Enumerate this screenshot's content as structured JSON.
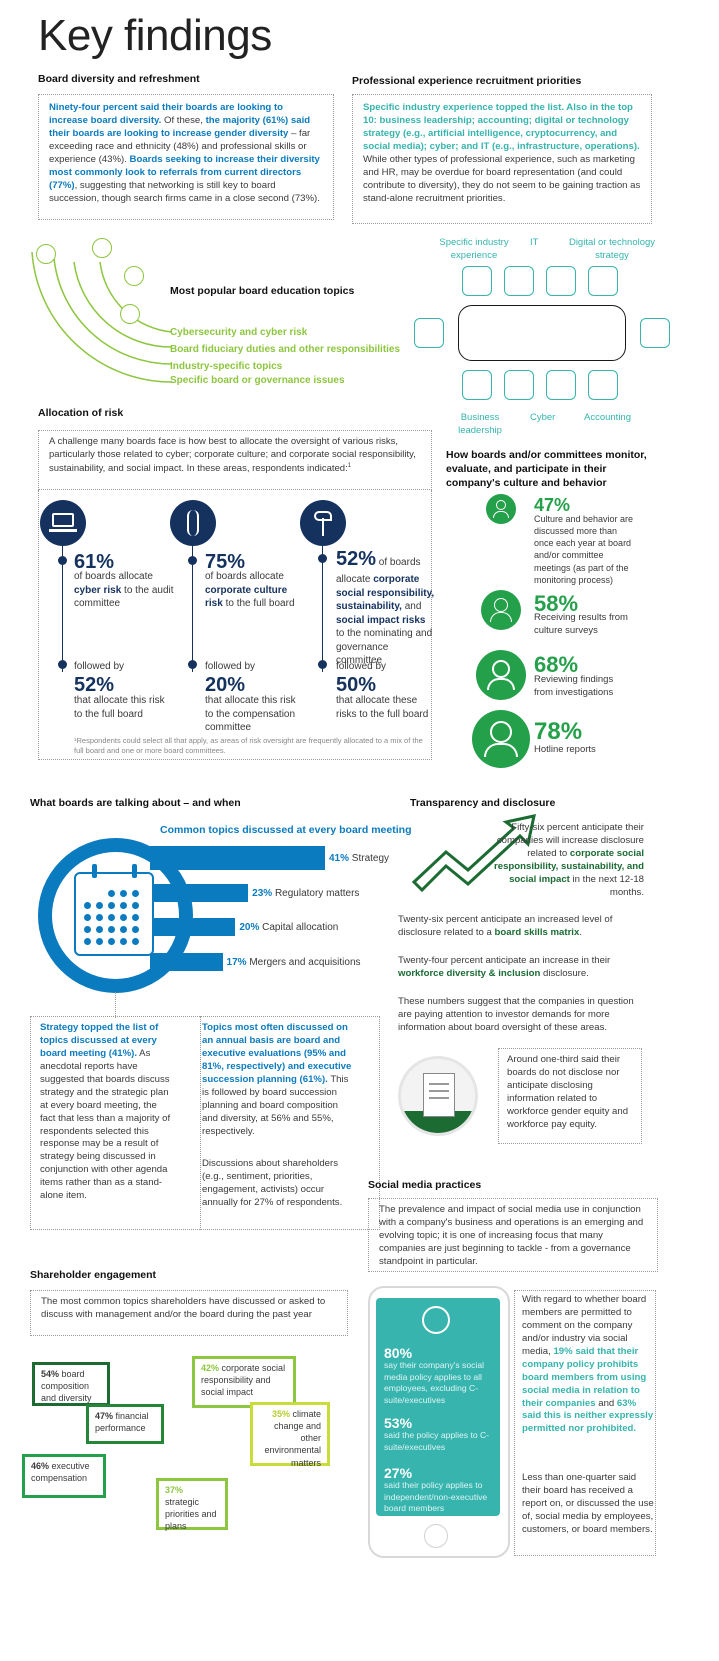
{
  "page_title": "Key findings",
  "board_diversity": {
    "heading": "Board diversity and refreshment",
    "p1": "Ninety-four percent said their boards are looking to increase board diversity.",
    "p2": " Of these, ",
    "p3": "the majority (61%) said their boards are looking to increase gender diversity",
    "p4": " – far exceeding race and ethnicity (48%) and professional skills or experience (43%). ",
    "p5": "Boards seeking to increase their diversity most commonly look to referrals from current directors (77%)",
    "p6": ", suggesting that networking is still key to board succession, though search firms came in a close second (73%)."
  },
  "prof_experience": {
    "heading": "Professional experience recruitment priorities",
    "p1": "Specific industry experience topped the list. Also in the top 10: business leadership; accounting; digital or technology strategy (e.g., artificial intelligence, cryptocurrency, and social media); cyber; and IT (e.g., infrastructure, operations).",
    "p2": " While other types of professional experience, such as marketing and HR, may be overdue for board representation (and could contribute to diversity), they do not seem to be gaining traction as stand-alone recruitment priorities."
  },
  "education": {
    "heading": "Most popular board education topics",
    "items": [
      "Cybersecurity and cyber risk",
      "Board fiduciary duties and other responsibilities",
      "Industry-specific topics",
      "Specific board or governance issues"
    ]
  },
  "seats": {
    "top": [
      "Specific industry experience",
      "IT",
      "Digital or technology strategy"
    ],
    "bottom": [
      "Business leadership",
      "Cyber",
      "Accounting"
    ]
  },
  "risk": {
    "heading": "Allocation of risk",
    "intro": "A challenge many boards face is how best to allocate the oversight of various risks, particularly those related to cyber; corporate culture; and corporate social responsibility, sustainability, and social impact. In these areas, respondents indicated:",
    "sup": "1",
    "cols": [
      {
        "pct": "61%",
        "t1": "of boards allocate ",
        "b1": "cyber risk",
        "t2": " to the audit committee",
        "followed": "followed by",
        "pct2": "52%",
        "t3": "that allocate this risk to the full board"
      },
      {
        "pct": "75%",
        "t1": "of boards allocate ",
        "b1": "corporate culture risk",
        "t2": " to the full board",
        "followed": "followed by",
        "pct2": "20%",
        "t3": "that allocate this risk to the compensation committee"
      },
      {
        "pct": "52%",
        "t1": " of boards allocate ",
        "b1": "corporate social responsibility, sustainability,",
        "t2": " and ",
        "b2": "social impact risks",
        "t3a": " to the nominating and governance committee",
        "followed": "followed by",
        "pct2": "50%",
        "t3": "that allocate these risks to the full board"
      }
    ],
    "footnote": "¹Respondents could select all that apply, as areas of risk oversight are frequently allocated to a mix of the full board and one or more board committees."
  },
  "culture": {
    "heading": "How boards and/or committees monitor, evaluate, and participate in their company's culture and behavior",
    "items": [
      {
        "pct": "47%",
        "text": "Culture and behavior are discussed more than once each year at board and/or committee meetings (as part of the monitoring process)"
      },
      {
        "pct": "58%",
        "text": "Receiving results from culture surveys"
      },
      {
        "pct": "68%",
        "text": "Reviewing findings from investigations"
      },
      {
        "pct": "78%",
        "text": "Hotline reports"
      }
    ]
  },
  "talking": {
    "heading": "What boards are talking about – and when",
    "subheading": "Common topics discussed at every board meeting",
    "bars": [
      {
        "pct": "41%",
        "label": "Strategy",
        "value": 41
      },
      {
        "pct": "23%",
        "label": "Regulatory matters",
        "value": 23
      },
      {
        "pct": "20%",
        "label": "Capital allocation",
        "value": 20
      },
      {
        "pct": "17%",
        "label": "Mergers and acquisitions",
        "value": 17
      }
    ],
    "left_b": "Strategy topped the list of topics discussed at every board meeting (41%).",
    "left_t": " As anecdotal reports have suggested that boards discuss strategy and the strategic plan at every board meeting, the fact that less than a majority of respondents selected this response may be a result of strategy being discussed in conjunction with other agenda items rather than as a stand-alone item.",
    "right_b": "Topics most often discussed on an annual basis are board and executive evaluations (95% and 81%, respectively) and executive succession planning (61%).",
    "right_t": " This is followed by board succession planning and board composition and diversity, at 56% and 55%, respectively.",
    "right_t2": "Discussions about shareholders (e.g., sentiment, priorities, engagement, activists) occur annually for 27% of respondents."
  },
  "transparency": {
    "heading": "Transparency and disclosure",
    "p1a": "Fifty-six percent anticipate their companies will increase disclosure related to ",
    "p1b": "corporate social responsibility, sustainability, and social impact",
    "p1c": " in the next 12-18 months.",
    "p2a": "Twenty-six percent anticipate an increased level of disclosure related to a ",
    "p2b": "board skills matrix",
    "p2c": ".",
    "p3a": "Twenty-four percent anticipate an increase in their ",
    "p3b": "workforce diversity & inclusion",
    "p3c": " disclosure.",
    "p4": "These numbers suggest that the companies in question are paying attention to investor demands for more information about board oversight of these areas.",
    "box": "Around one-third said their boards do not disclose nor anticipate disclosing information related to workforce gender equity and workforce pay equity."
  },
  "social": {
    "heading": "Social media practices",
    "intro": "The prevalence and impact of social media use in conjunction with a company's business and operations is an emerging and evolving topic; it is one of increasing focus that many companies are just beginning to tackle - from a governance standpoint in particular.",
    "phone": [
      {
        "pct": "80%",
        "text": "say their company's social media policy applies to all employees, excluding C-suite/executives"
      },
      {
        "pct": "53%",
        "text": "said the policy applies to C-suite/executives"
      },
      {
        "pct": "27%",
        "text": "said their policy applies to independent/non-executive board members"
      }
    ],
    "right_t1": "With regard to whether board members are permitted to comment on the company and/or industry via social media, ",
    "right_b1": "19% said that their company policy prohibits board members from using social media in relation to their companies",
    "right_t2": " and ",
    "right_b2": "63% said this is neither expressly permitted nor prohibited.",
    "right_p2": "Less than one-quarter said their board has received a report on, or discussed the use of, social media by employees, customers, or board members."
  },
  "shareholder": {
    "heading": "Shareholder engagement",
    "intro": "The most common topics shareholders have discussed or asked to discuss with management and/or the board during the past year",
    "bubbles": [
      {
        "pct": "54%",
        "text": "board composition and diversity"
      },
      {
        "pct": "47%",
        "text": "financial performance"
      },
      {
        "pct": "46%",
        "text": "executive compensation"
      },
      {
        "pct": "42%",
        "text": "corporate social responsibility and social impact"
      },
      {
        "pct": "35%",
        "text": "climate change and other environmental matters"
      },
      {
        "pct": "37%",
        "text": "strategic priorities and plans"
      }
    ]
  },
  "colors": {
    "blue": "#0b7bbf",
    "navy": "#15325f",
    "green": "#25a04a",
    "teal": "#37b4ae",
    "lime": "#8dc63f",
    "darkgreen": "#1b6b33"
  }
}
